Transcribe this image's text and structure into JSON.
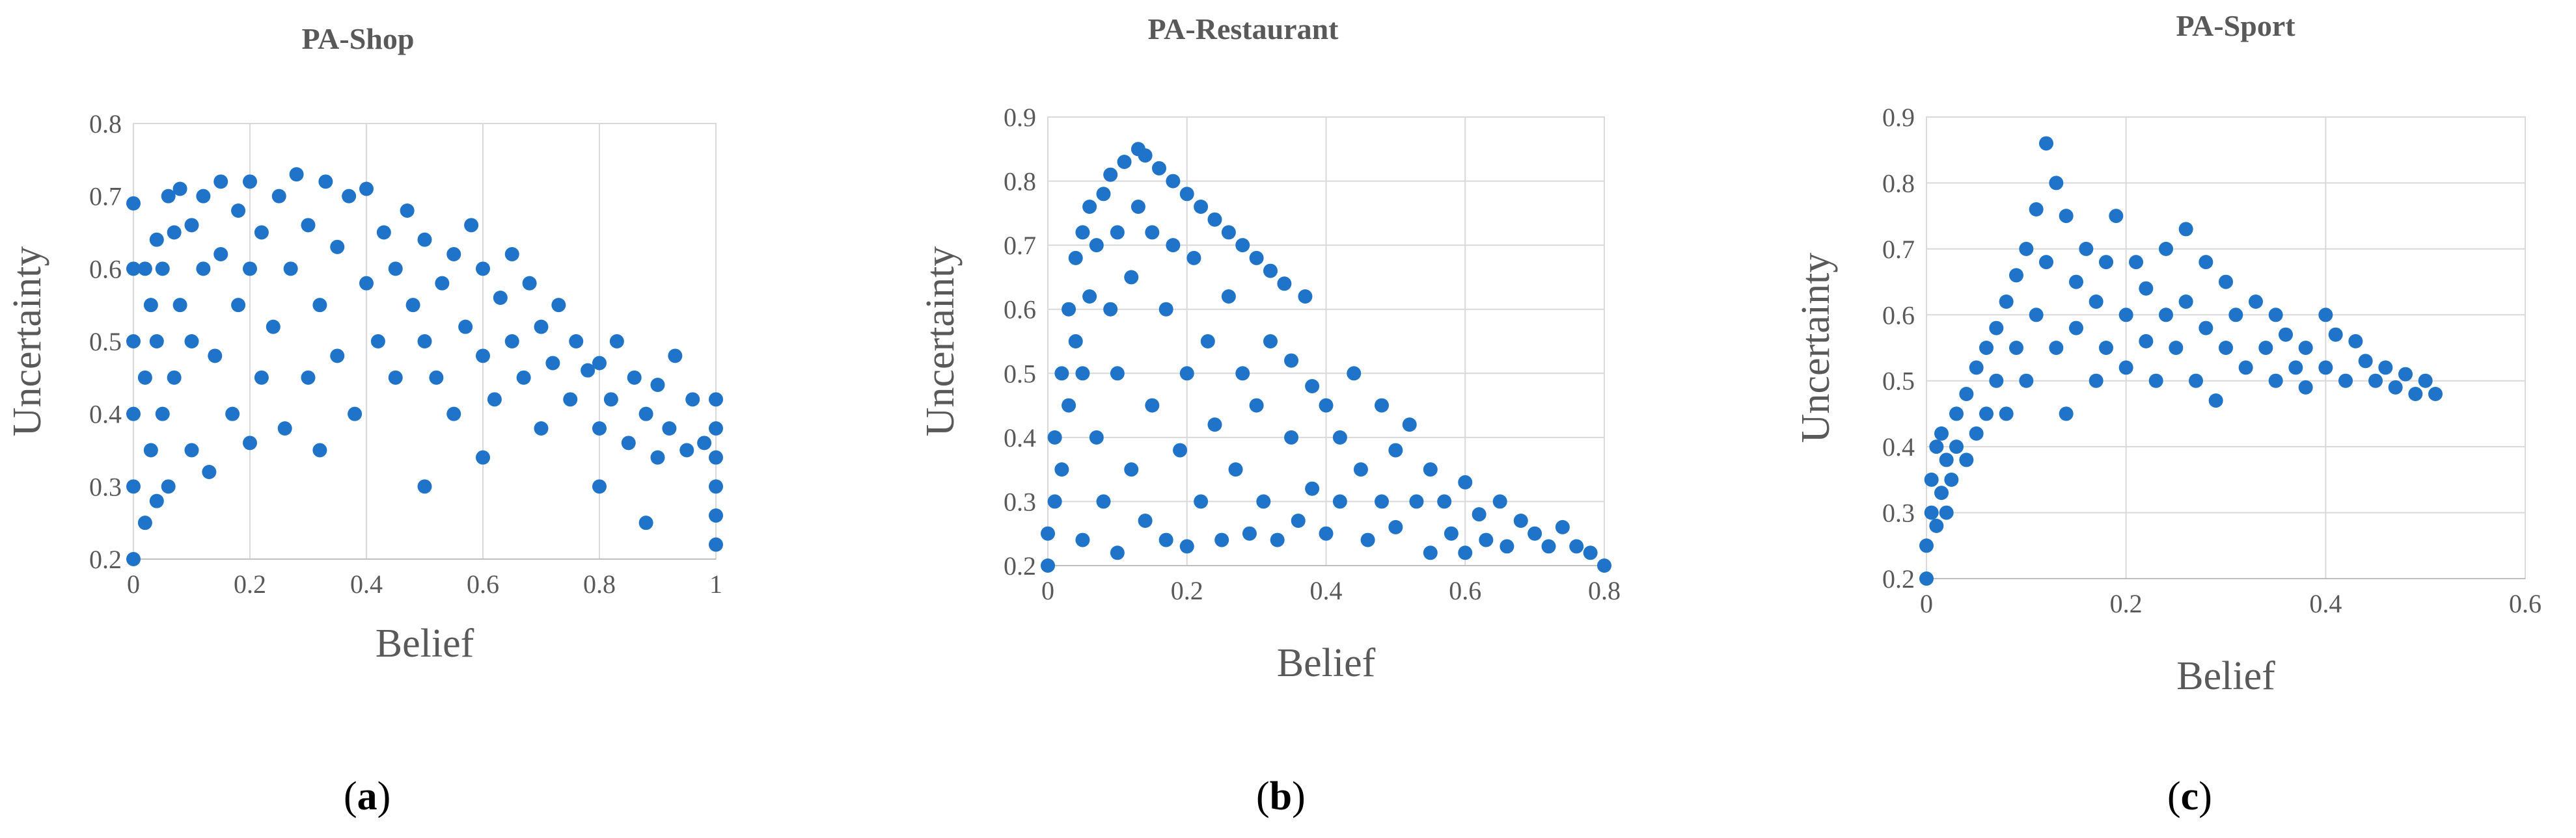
{
  "colors": {
    "marker": "#1f74c9",
    "grid": "#d9d9d9",
    "text": "#595959"
  },
  "chart_data": [
    {
      "type": "scatter",
      "title": "PA-Shop",
      "xlabel": "Belief",
      "ylabel": "Uncertainty",
      "xlim": [
        0,
        1
      ],
      "ylim": [
        0.2,
        0.8
      ],
      "x_ticks": [
        "0",
        "0.2",
        "0.4",
        "0.6",
        "0.8",
        "1"
      ],
      "y_ticks": [
        "0.2",
        "0.3",
        "0.4",
        "0.5",
        "0.6",
        "0.7",
        "0.8"
      ],
      "grid": "vertical",
      "caption": "a",
      "points": [
        [
          0.0,
          0.2
        ],
        [
          0.0,
          0.3
        ],
        [
          0.0,
          0.4
        ],
        [
          0.0,
          0.5
        ],
        [
          0.0,
          0.6
        ],
        [
          0.0,
          0.69
        ],
        [
          0.02,
          0.25
        ],
        [
          0.02,
          0.45
        ],
        [
          0.02,
          0.6
        ],
        [
          0.03,
          0.35
        ],
        [
          0.03,
          0.55
        ],
        [
          0.04,
          0.28
        ],
        [
          0.04,
          0.5
        ],
        [
          0.04,
          0.64
        ],
        [
          0.05,
          0.4
        ],
        [
          0.05,
          0.6
        ],
        [
          0.06,
          0.3
        ],
        [
          0.06,
          0.7
        ],
        [
          0.07,
          0.45
        ],
        [
          0.07,
          0.65
        ],
        [
          0.08,
          0.55
        ],
        [
          0.08,
          0.71
        ],
        [
          0.1,
          0.35
        ],
        [
          0.1,
          0.5
        ],
        [
          0.1,
          0.66
        ],
        [
          0.12,
          0.6
        ],
        [
          0.12,
          0.7
        ],
        [
          0.13,
          0.32
        ],
        [
          0.14,
          0.48
        ],
        [
          0.15,
          0.62
        ],
        [
          0.15,
          0.72
        ],
        [
          0.17,
          0.4
        ],
        [
          0.18,
          0.55
        ],
        [
          0.18,
          0.68
        ],
        [
          0.2,
          0.36
        ],
        [
          0.2,
          0.6
        ],
        [
          0.2,
          0.72
        ],
        [
          0.22,
          0.45
        ],
        [
          0.22,
          0.65
        ],
        [
          0.24,
          0.52
        ],
        [
          0.25,
          0.7
        ],
        [
          0.26,
          0.38
        ],
        [
          0.27,
          0.6
        ],
        [
          0.28,
          0.73
        ],
        [
          0.3,
          0.45
        ],
        [
          0.3,
          0.66
        ],
        [
          0.32,
          0.35
        ],
        [
          0.32,
          0.55
        ],
        [
          0.33,
          0.72
        ],
        [
          0.35,
          0.48
        ],
        [
          0.35,
          0.63
        ],
        [
          0.37,
          0.7
        ],
        [
          0.38,
          0.4
        ],
        [
          0.4,
          0.58
        ],
        [
          0.4,
          0.71
        ],
        [
          0.42,
          0.5
        ],
        [
          0.43,
          0.65
        ],
        [
          0.45,
          0.45
        ],
        [
          0.45,
          0.6
        ],
        [
          0.47,
          0.68
        ],
        [
          0.48,
          0.55
        ],
        [
          0.5,
          0.3
        ],
        [
          0.5,
          0.5
        ],
        [
          0.5,
          0.64
        ],
        [
          0.52,
          0.45
        ],
        [
          0.53,
          0.58
        ],
        [
          0.55,
          0.4
        ],
        [
          0.55,
          0.62
        ],
        [
          0.57,
          0.52
        ],
        [
          0.58,
          0.66
        ],
        [
          0.6,
          0.34
        ],
        [
          0.6,
          0.48
        ],
        [
          0.6,
          0.6
        ],
        [
          0.62,
          0.42
        ],
        [
          0.63,
          0.56
        ],
        [
          0.65,
          0.5
        ],
        [
          0.65,
          0.62
        ],
        [
          0.67,
          0.45
        ],
        [
          0.68,
          0.58
        ],
        [
          0.7,
          0.38
        ],
        [
          0.7,
          0.52
        ],
        [
          0.72,
          0.47
        ],
        [
          0.73,
          0.55
        ],
        [
          0.75,
          0.42
        ],
        [
          0.76,
          0.5
        ],
        [
          0.78,
          0.46
        ],
        [
          0.8,
          0.3
        ],
        [
          0.8,
          0.38
        ],
        [
          0.8,
          0.47
        ],
        [
          0.82,
          0.42
        ],
        [
          0.83,
          0.5
        ],
        [
          0.85,
          0.36
        ],
        [
          0.86,
          0.45
        ],
        [
          0.88,
          0.25
        ],
        [
          0.88,
          0.4
        ],
        [
          0.9,
          0.34
        ],
        [
          0.9,
          0.44
        ],
        [
          0.92,
          0.38
        ],
        [
          0.93,
          0.48
        ],
        [
          0.95,
          0.35
        ],
        [
          0.96,
          0.42
        ],
        [
          0.98,
          0.36
        ],
        [
          1.0,
          0.22
        ],
        [
          1.0,
          0.26
        ],
        [
          1.0,
          0.3
        ],
        [
          1.0,
          0.34
        ],
        [
          1.0,
          0.38
        ],
        [
          1.0,
          0.42
        ]
      ]
    },
    {
      "type": "scatter",
      "title": "PA-Restaurant",
      "xlabel": "Belief",
      "ylabel": "Uncertainty",
      "xlim": [
        0,
        0.8
      ],
      "ylim": [
        0.2,
        0.9
      ],
      "x_ticks": [
        "0",
        "0.2",
        "0.4",
        "0.6",
        "0.8"
      ],
      "y_ticks": [
        "0.2",
        "0.3",
        "0.4",
        "0.5",
        "0.6",
        "0.7",
        "0.8",
        "0.9"
      ],
      "grid": "both",
      "caption": "b",
      "points": [
        [
          0.0,
          0.2
        ],
        [
          0.0,
          0.25
        ],
        [
          0.01,
          0.3
        ],
        [
          0.01,
          0.4
        ],
        [
          0.02,
          0.35
        ],
        [
          0.02,
          0.5
        ],
        [
          0.03,
          0.45
        ],
        [
          0.03,
          0.6
        ],
        [
          0.04,
          0.55
        ],
        [
          0.04,
          0.68
        ],
        [
          0.05,
          0.24
        ],
        [
          0.05,
          0.5
        ],
        [
          0.05,
          0.72
        ],
        [
          0.06,
          0.62
        ],
        [
          0.06,
          0.76
        ],
        [
          0.07,
          0.4
        ],
        [
          0.07,
          0.7
        ],
        [
          0.08,
          0.78
        ],
        [
          0.08,
          0.3
        ],
        [
          0.09,
          0.6
        ],
        [
          0.09,
          0.81
        ],
        [
          0.1,
          0.22
        ],
        [
          0.1,
          0.5
        ],
        [
          0.1,
          0.72
        ],
        [
          0.11,
          0.83
        ],
        [
          0.12,
          0.35
        ],
        [
          0.12,
          0.65
        ],
        [
          0.13,
          0.85
        ],
        [
          0.13,
          0.76
        ],
        [
          0.14,
          0.84
        ],
        [
          0.14,
          0.27
        ],
        [
          0.15,
          0.45
        ],
        [
          0.15,
          0.72
        ],
        [
          0.16,
          0.82
        ],
        [
          0.17,
          0.24
        ],
        [
          0.17,
          0.6
        ],
        [
          0.18,
          0.8
        ],
        [
          0.18,
          0.7
        ],
        [
          0.19,
          0.38
        ],
        [
          0.2,
          0.78
        ],
        [
          0.2,
          0.5
        ],
        [
          0.2,
          0.23
        ],
        [
          0.21,
          0.68
        ],
        [
          0.22,
          0.76
        ],
        [
          0.22,
          0.3
        ],
        [
          0.23,
          0.55
        ],
        [
          0.24,
          0.74
        ],
        [
          0.24,
          0.42
        ],
        [
          0.25,
          0.24
        ],
        [
          0.26,
          0.72
        ],
        [
          0.26,
          0.62
        ],
        [
          0.27,
          0.35
        ],
        [
          0.28,
          0.7
        ],
        [
          0.28,
          0.5
        ],
        [
          0.29,
          0.25
        ],
        [
          0.3,
          0.68
        ],
        [
          0.3,
          0.45
        ],
        [
          0.31,
          0.3
        ],
        [
          0.32,
          0.66
        ],
        [
          0.32,
          0.55
        ],
        [
          0.33,
          0.24
        ],
        [
          0.34,
          0.64
        ],
        [
          0.35,
          0.4
        ],
        [
          0.35,
          0.52
        ],
        [
          0.36,
          0.27
        ],
        [
          0.37,
          0.62
        ],
        [
          0.38,
          0.48
        ],
        [
          0.38,
          0.32
        ],
        [
          0.4,
          0.45
        ],
        [
          0.4,
          0.25
        ],
        [
          0.42,
          0.4
        ],
        [
          0.42,
          0.3
        ],
        [
          0.44,
          0.5
        ],
        [
          0.45,
          0.35
        ],
        [
          0.46,
          0.24
        ],
        [
          0.48,
          0.45
        ],
        [
          0.48,
          0.3
        ],
        [
          0.5,
          0.38
        ],
        [
          0.5,
          0.26
        ],
        [
          0.52,
          0.42
        ],
        [
          0.53,
          0.3
        ],
        [
          0.55,
          0.35
        ],
        [
          0.55,
          0.22
        ],
        [
          0.57,
          0.3
        ],
        [
          0.58,
          0.25
        ],
        [
          0.6,
          0.33
        ],
        [
          0.6,
          0.22
        ],
        [
          0.62,
          0.28
        ],
        [
          0.63,
          0.24
        ],
        [
          0.65,
          0.3
        ],
        [
          0.66,
          0.23
        ],
        [
          0.68,
          0.27
        ],
        [
          0.7,
          0.25
        ],
        [
          0.72,
          0.23
        ],
        [
          0.74,
          0.26
        ],
        [
          0.76,
          0.23
        ],
        [
          0.78,
          0.22
        ],
        [
          0.8,
          0.2
        ]
      ]
    },
    {
      "type": "scatter",
      "title": "PA-Sport",
      "xlabel": "Belief",
      "ylabel": "Uncertainty",
      "xlim": [
        0,
        0.6
      ],
      "ylim": [
        0.2,
        0.9
      ],
      "x_ticks": [
        "0",
        "0.2",
        "0.4",
        "0.6"
      ],
      "y_ticks": [
        "0.2",
        "0.3",
        "0.4",
        "0.5",
        "0.6",
        "0.7",
        "0.8",
        "0.9"
      ],
      "grid": "both",
      "caption": "c",
      "points": [
        [
          0.0,
          0.2
        ],
        [
          0.0,
          0.25
        ],
        [
          0.005,
          0.3
        ],
        [
          0.005,
          0.35
        ],
        [
          0.01,
          0.28
        ],
        [
          0.01,
          0.4
        ],
        [
          0.015,
          0.33
        ],
        [
          0.015,
          0.42
        ],
        [
          0.02,
          0.3
        ],
        [
          0.02,
          0.38
        ],
        [
          0.025,
          0.35
        ],
        [
          0.03,
          0.4
        ],
        [
          0.03,
          0.45
        ],
        [
          0.04,
          0.38
        ],
        [
          0.04,
          0.48
        ],
        [
          0.05,
          0.42
        ],
        [
          0.05,
          0.52
        ],
        [
          0.06,
          0.45
        ],
        [
          0.06,
          0.55
        ],
        [
          0.07,
          0.5
        ],
        [
          0.07,
          0.58
        ],
        [
          0.08,
          0.45
        ],
        [
          0.08,
          0.62
        ],
        [
          0.09,
          0.55
        ],
        [
          0.09,
          0.66
        ],
        [
          0.1,
          0.5
        ],
        [
          0.1,
          0.7
        ],
        [
          0.11,
          0.6
        ],
        [
          0.11,
          0.76
        ],
        [
          0.12,
          0.86
        ],
        [
          0.12,
          0.68
        ],
        [
          0.13,
          0.8
        ],
        [
          0.13,
          0.55
        ],
        [
          0.14,
          0.75
        ],
        [
          0.14,
          0.45
        ],
        [
          0.15,
          0.65
        ],
        [
          0.15,
          0.58
        ],
        [
          0.16,
          0.7
        ],
        [
          0.17,
          0.5
        ],
        [
          0.17,
          0.62
        ],
        [
          0.18,
          0.68
        ],
        [
          0.18,
          0.55
        ],
        [
          0.19,
          0.75
        ],
        [
          0.2,
          0.6
        ],
        [
          0.2,
          0.52
        ],
        [
          0.21,
          0.68
        ],
        [
          0.22,
          0.56
        ],
        [
          0.22,
          0.64
        ],
        [
          0.23,
          0.5
        ],
        [
          0.24,
          0.7
        ],
        [
          0.24,
          0.6
        ],
        [
          0.25,
          0.55
        ],
        [
          0.26,
          0.73
        ],
        [
          0.26,
          0.62
        ],
        [
          0.27,
          0.5
        ],
        [
          0.28,
          0.68
        ],
        [
          0.28,
          0.58
        ],
        [
          0.29,
          0.47
        ],
        [
          0.3,
          0.65
        ],
        [
          0.3,
          0.55
        ],
        [
          0.31,
          0.6
        ],
        [
          0.32,
          0.52
        ],
        [
          0.33,
          0.62
        ],
        [
          0.34,
          0.55
        ],
        [
          0.35,
          0.5
        ],
        [
          0.35,
          0.6
        ],
        [
          0.36,
          0.57
        ],
        [
          0.37,
          0.52
        ],
        [
          0.38,
          0.55
        ],
        [
          0.38,
          0.49
        ],
        [
          0.4,
          0.6
        ],
        [
          0.4,
          0.52
        ],
        [
          0.41,
          0.57
        ],
        [
          0.42,
          0.5
        ],
        [
          0.43,
          0.56
        ],
        [
          0.44,
          0.53
        ],
        [
          0.45,
          0.5
        ],
        [
          0.46,
          0.52
        ],
        [
          0.47,
          0.49
        ],
        [
          0.48,
          0.51
        ],
        [
          0.49,
          0.48
        ],
        [
          0.5,
          0.5
        ],
        [
          0.51,
          0.48
        ]
      ]
    }
  ]
}
